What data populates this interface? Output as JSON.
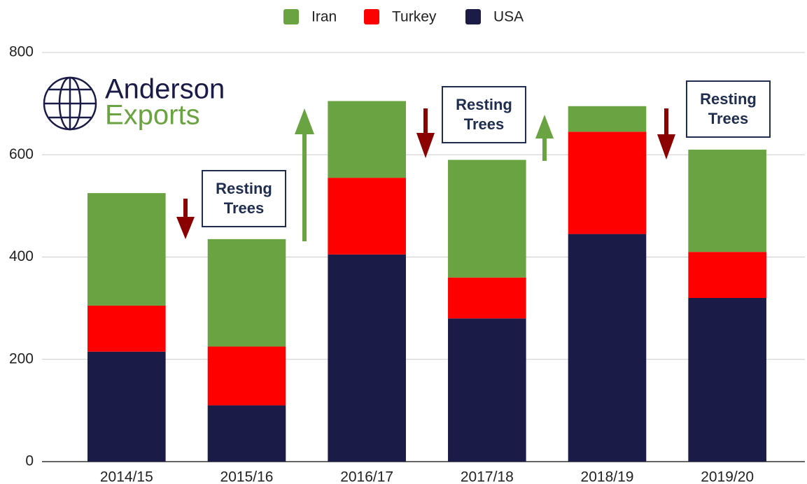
{
  "chart_data": {
    "type": "stacked_bar",
    "categories": [
      "2014/15",
      "2015/16",
      "2016/17",
      "2017/18",
      "2018/19",
      "2019/20"
    ],
    "series": [
      {
        "name": "USA",
        "color": "#1a1b46",
        "values": [
          215,
          110,
          405,
          280,
          445,
          320
        ]
      },
      {
        "name": "Turkey",
        "color": "#ff0000",
        "values": [
          90,
          115,
          150,
          80,
          200,
          90
        ]
      },
      {
        "name": "Iran",
        "color": "#6aa341",
        "values": [
          220,
          210,
          150,
          230,
          50,
          200
        ]
      }
    ],
    "legend_order": [
      "Iran",
      "Turkey",
      "USA"
    ],
    "ylim": [
      0,
      800
    ],
    "yticks": [
      0,
      200,
      400,
      600,
      800
    ],
    "grid": true,
    "annotations": [
      "Resting Trees",
      "Resting Trees",
      "Resting Trees"
    ],
    "logo": {
      "line1": "Anderson",
      "line2": "Exports"
    }
  }
}
